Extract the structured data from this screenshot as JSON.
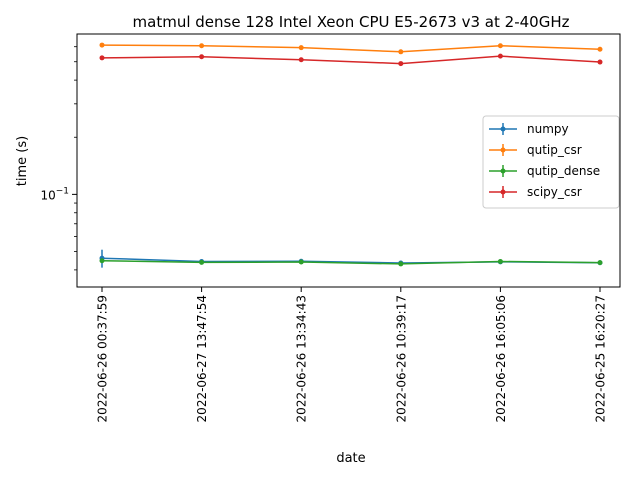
{
  "chart_data": {
    "type": "line",
    "title": "matmul dense 128 Intel Xeon CPU E5-2673 v3 at 2-40GHz",
    "xlabel": "date",
    "ylabel": "time (s)",
    "yscale": "log",
    "ylim": [
      0.0325,
      0.7
    ],
    "yticks": [
      {
        "value": 0.1,
        "label": "10−1",
        "base": "10",
        "exp": "−1"
      }
    ],
    "categories": [
      "2022-06-26 00:37:59",
      "2022-06-27 13:47:54",
      "2022-06-26 13:34:43",
      "2022-06-26 10:39:17",
      "2022-06-26 16:05:06",
      "2022-06-25 16:20:27"
    ],
    "series": [
      {
        "name": "numpy",
        "color": "#1f77b4",
        "values": [
          0.0461,
          0.0443,
          0.0444,
          0.0435,
          0.0441,
          0.0436
        ],
        "errors": [
          0.005,
          0.001,
          0.001,
          0.0008,
          0.001,
          0.0006
        ]
      },
      {
        "name": "qutip_csr",
        "color": "#ff7f0e",
        "values": [
          0.612,
          0.607,
          0.593,
          0.564,
          0.607,
          0.582
        ],
        "errors": [
          0.004,
          0.004,
          0.004,
          0.004,
          0.004,
          0.004
        ]
      },
      {
        "name": "qutip_dense",
        "color": "#2ca02c",
        "values": [
          0.0447,
          0.0438,
          0.044,
          0.043,
          0.0443,
          0.0437
        ],
        "errors": [
          0.0008,
          0.0006,
          0.0008,
          0.0006,
          0.0009,
          0.0005
        ]
      },
      {
        "name": "scipy_csr",
        "color": "#d62728",
        "values": [
          0.524,
          0.531,
          0.512,
          0.489,
          0.535,
          0.498
        ],
        "errors": [
          0.003,
          0.003,
          0.003,
          0.003,
          0.003,
          0.003
        ]
      }
    ],
    "grid": false,
    "legend_position": "center-right"
  }
}
